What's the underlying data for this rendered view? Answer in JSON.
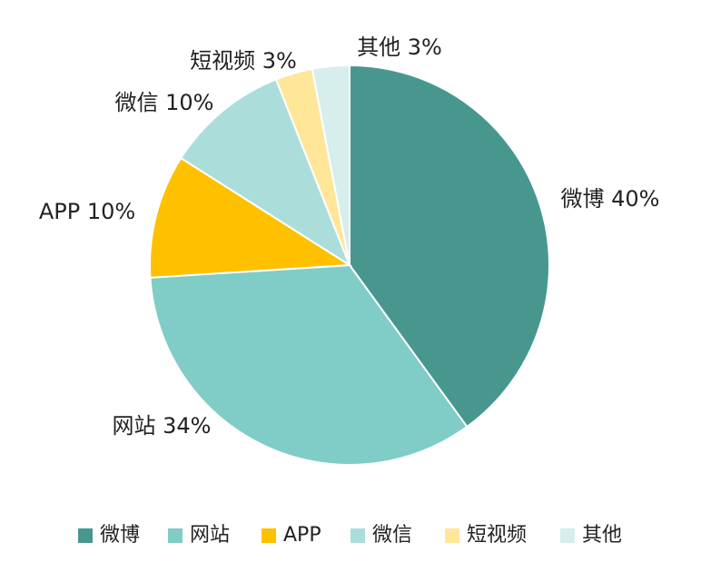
{
  "chart_data": {
    "type": "pie",
    "title": "",
    "slices": [
      {
        "name": "微博",
        "value": 40,
        "label": "微博 40%",
        "color": "#47978F"
      },
      {
        "name": "网站",
        "value": 34,
        "label": "网站 34%",
        "color": "#80CCC6"
      },
      {
        "name": "APP",
        "value": 10,
        "label": "APP 10%",
        "color": "#FFC000"
      },
      {
        "name": "微信",
        "value": 10,
        "label": "微信 10%",
        "color": "#ABDEDA"
      },
      {
        "name": "短视频",
        "value": 3,
        "label": "短视频 3%",
        "color": "#FFE699"
      },
      {
        "name": "其他",
        "value": 3,
        "label": "其他 3%",
        "color": "#D6EEEC"
      }
    ],
    "start_angle": "12 o'clock",
    "direction": "clockwise",
    "legend_position": "bottom"
  }
}
